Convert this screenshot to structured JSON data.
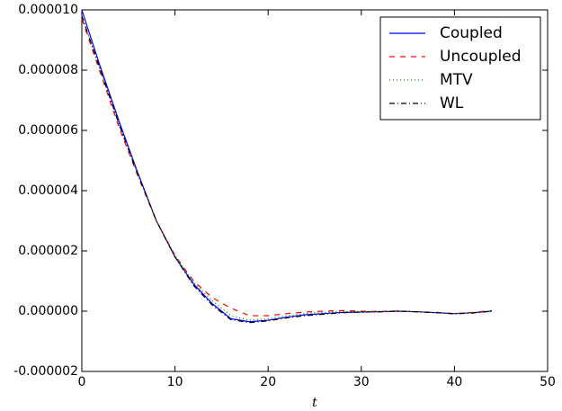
{
  "chart_data": {
    "type": "line",
    "x_label": "t",
    "x": [
      0,
      2,
      4,
      6,
      8,
      10,
      12,
      14,
      16,
      18,
      20,
      22,
      24,
      26,
      28,
      30,
      32,
      34,
      36,
      38,
      40,
      42,
      44
    ],
    "series": [
      {
        "name": "Coupled",
        "color": "#0000ff",
        "style": "solid",
        "values": [
          1e-05,
          8.1e-06,
          6.3e-06,
          4.6e-06,
          3e-06,
          1.8e-06,
          9e-07,
          2.5e-07,
          -2.5e-07,
          -3.5e-07,
          -3e-07,
          -2e-07,
          -1.2e-07,
          -8e-08,
          -4e-08,
          -3e-08,
          -2e-08,
          0.0,
          -2e-08,
          -5e-08,
          -8e-08,
          -5e-08,
          0.0
        ]
      },
      {
        "name": "Uncoupled",
        "color": "#ff0000",
        "style": "dashed",
        "values": [
          9.7e-06,
          7.9e-06,
          6.1e-06,
          4.5e-06,
          3e-06,
          1.85e-06,
          1e-06,
          4.5e-07,
          1e-07,
          -1.5e-07,
          -1.5e-07,
          -8e-08,
          -3e-08,
          0.0,
          2e-08,
          0.0,
          -1e-08,
          1e-08,
          -2e-08,
          -4e-08,
          -8e-08,
          -4e-08,
          2e-08
        ]
      },
      {
        "name": "MTV",
        "color": "#008000",
        "style": "dotted",
        "values": [
          9.8e-06,
          8e-06,
          6.2e-06,
          4.55e-06,
          3e-06,
          1.85e-06,
          9.5e-07,
          3.5e-07,
          -1.5e-07,
          -3e-07,
          -2.5e-07,
          -1.5e-07,
          -8e-08,
          -4e-08,
          -1e-08,
          -1e-08,
          0.0,
          0.0,
          -2e-08,
          -4e-08,
          -8e-08,
          -5e-08,
          1e-08
        ]
      },
      {
        "name": "WL",
        "color": "#000000",
        "style": "dashdot",
        "values": [
          9.8e-06,
          8e-06,
          6.2e-06,
          4.55e-06,
          3e-06,
          1.8e-06,
          8.5e-07,
          2e-07,
          -2.8e-07,
          -3.8e-07,
          -3.2e-07,
          -2.2e-07,
          -1.5e-07,
          -1e-07,
          -5e-08,
          -3e-08,
          -2e-08,
          0.0,
          -2e-08,
          -5e-08,
          -9e-08,
          -6e-08,
          0.0
        ]
      }
    ],
    "xlim": [
      0,
      50
    ],
    "xticks": [
      0,
      10,
      20,
      30,
      40,
      50
    ],
    "ylim": [
      -2e-06,
      1e-05
    ],
    "yticks": [
      {
        "value": -2e-06,
        "label": "-0.000002"
      },
      {
        "value": 0,
        "label": "0.000000"
      },
      {
        "value": 2e-06,
        "label": "0.000002"
      },
      {
        "value": 4e-06,
        "label": "0.000004"
      },
      {
        "value": 6e-06,
        "label": "0.000006"
      },
      {
        "value": 8e-06,
        "label": "0.000008"
      },
      {
        "value": 1e-05,
        "label": "0.000010"
      }
    ],
    "grid": false,
    "legend": "upper right"
  }
}
